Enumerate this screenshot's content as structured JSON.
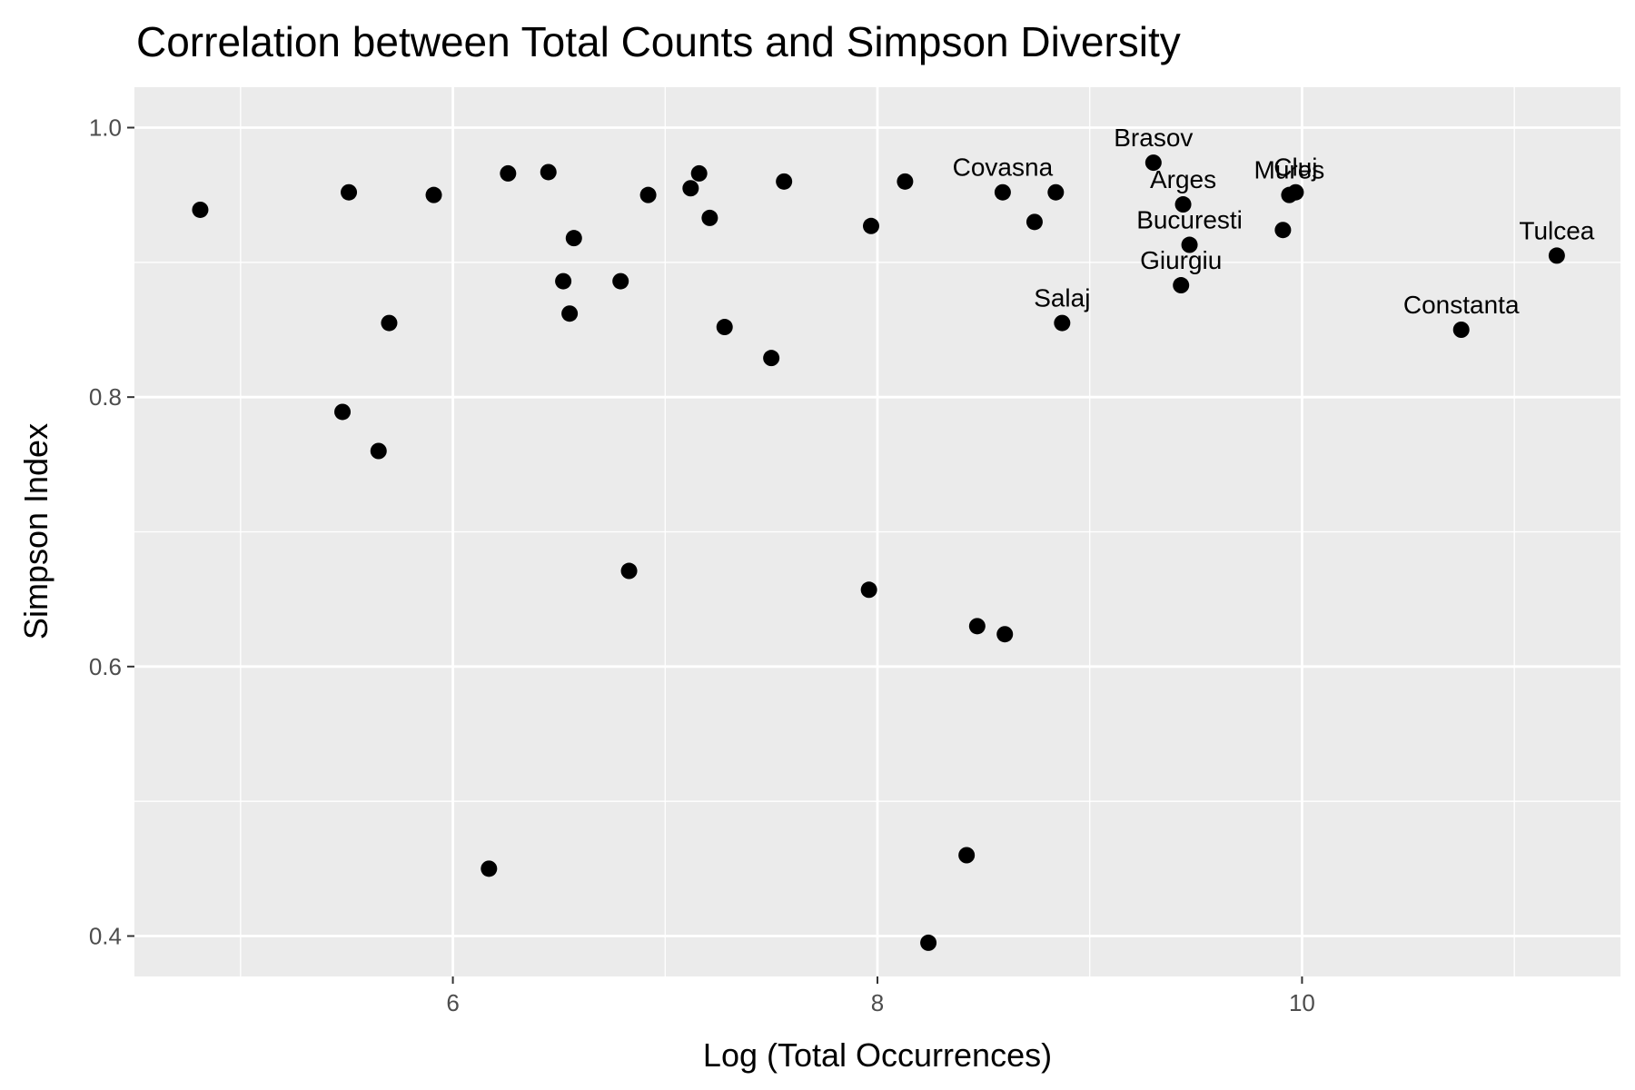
{
  "chart_data": {
    "type": "scatter",
    "title": "Correlation between Total Counts and Simpson Diversity",
    "xlabel": "Log (Total Occurrences)",
    "ylabel": "Simpson Index",
    "xlim": [
      4.5,
      11.5
    ],
    "ylim": [
      0.37,
      1.03
    ],
    "x_ticks": [
      6,
      8,
      10
    ],
    "x_tick_labels": [
      "6",
      "8",
      "10"
    ],
    "y_ticks": [
      0.4,
      0.6,
      0.8,
      1.0
    ],
    "y_tick_labels": [
      "0.4",
      "0.6",
      "0.8",
      "1.0"
    ],
    "grid": true,
    "legend": "none",
    "colors": {
      "panel_background": "#ebebeb",
      "grid": "#ffffff",
      "point": "#000000",
      "tick_label": "#4d4d4d",
      "tick_mark": "#333333"
    },
    "points": [
      {
        "x": 4.81,
        "y": 0.939
      },
      {
        "x": 5.48,
        "y": 0.789
      },
      {
        "x": 5.51,
        "y": 0.952
      },
      {
        "x": 5.65,
        "y": 0.76
      },
      {
        "x": 5.7,
        "y": 0.855
      },
      {
        "x": 5.91,
        "y": 0.95
      },
      {
        "x": 6.17,
        "y": 0.45
      },
      {
        "x": 6.26,
        "y": 0.966
      },
      {
        "x": 6.45,
        "y": 0.967
      },
      {
        "x": 6.52,
        "y": 0.886
      },
      {
        "x": 6.55,
        "y": 0.862
      },
      {
        "x": 6.57,
        "y": 0.918
      },
      {
        "x": 6.79,
        "y": 0.886
      },
      {
        "x": 6.83,
        "y": 0.671
      },
      {
        "x": 6.92,
        "y": 0.95
      },
      {
        "x": 7.12,
        "y": 0.955
      },
      {
        "x": 7.16,
        "y": 0.966
      },
      {
        "x": 7.21,
        "y": 0.933
      },
      {
        "x": 7.28,
        "y": 0.852
      },
      {
        "x": 7.5,
        "y": 0.829
      },
      {
        "x": 7.56,
        "y": 0.96
      },
      {
        "x": 7.96,
        "y": 0.657
      },
      {
        "x": 7.97,
        "y": 0.927
      },
      {
        "x": 8.13,
        "y": 0.96
      },
      {
        "x": 8.24,
        "y": 0.395
      },
      {
        "x": 8.42,
        "y": 0.46
      },
      {
        "x": 8.47,
        "y": 0.63
      },
      {
        "x": 8.59,
        "y": 0.952,
        "label": "Covasna"
      },
      {
        "x": 8.6,
        "y": 0.624
      },
      {
        "x": 8.74,
        "y": 0.93
      },
      {
        "x": 8.84,
        "y": 0.952
      },
      {
        "x": 8.87,
        "y": 0.855,
        "label": "Salaj"
      },
      {
        "x": 9.3,
        "y": 0.974,
        "label": "Brasov"
      },
      {
        "x": 9.43,
        "y": 0.883,
        "label": "Giurgiu"
      },
      {
        "x": 9.44,
        "y": 0.943,
        "label": "Arges"
      },
      {
        "x": 9.47,
        "y": 0.913,
        "label": "Bucuresti"
      },
      {
        "x": 9.91,
        "y": 0.924
      },
      {
        "x": 9.97,
        "y": 0.952,
        "label": "Cluj"
      },
      {
        "x": 9.94,
        "y": 0.95,
        "label": "Mures"
      },
      {
        "x": 10.75,
        "y": 0.85,
        "label": "Constanta"
      },
      {
        "x": 11.2,
        "y": 0.905,
        "label": "Tulcea"
      }
    ]
  }
}
